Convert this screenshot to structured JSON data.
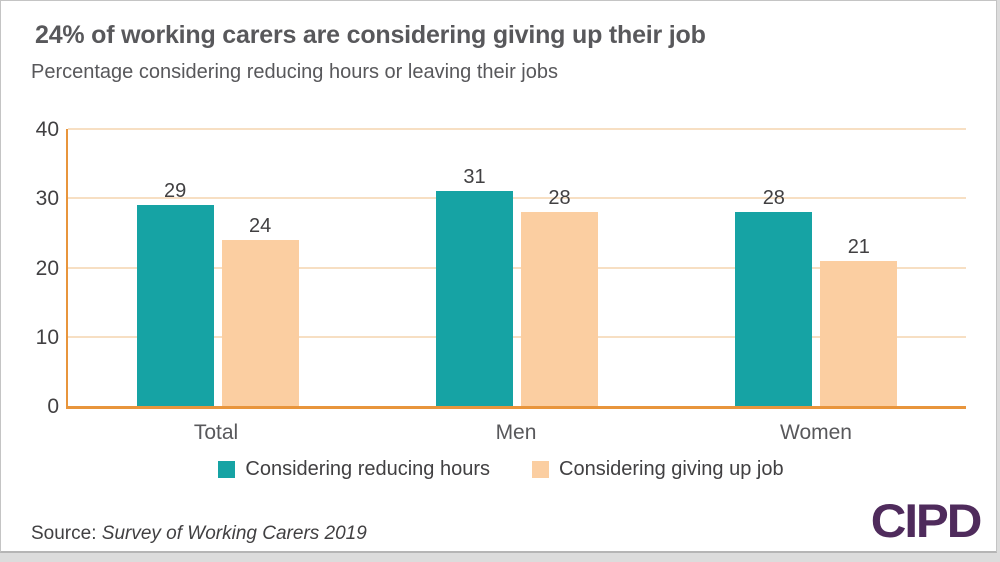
{
  "page": {
    "title": "24% of working carers are considering giving up their job",
    "subtitle": "Percentage considering reducing hours or leaving their jobs",
    "source_prefix": "Source:",
    "source_text": "Survey of Working Carers 2019",
    "logo_text": "CIPD"
  },
  "colors": {
    "teal": "#16a3a4",
    "peach": "#fbcea1",
    "axis_orange": "#e8953c",
    "gridline_orange": "#f7dfc3",
    "text_dark": "#58585b",
    "tick_text": "#414042",
    "logo_purple": "#4f2b5c"
  },
  "chart_data": {
    "type": "bar",
    "categories": [
      "Total",
      "Men",
      "Women"
    ],
    "series": [
      {
        "name": "Considering reducing hours",
        "color_key": "teal",
        "values": [
          29,
          31,
          28
        ]
      },
      {
        "name": "Considering giving up job",
        "color_key": "peach",
        "values": [
          24,
          28,
          21
        ]
      }
    ],
    "title": "24% of working carers are considering giving up their job",
    "subtitle": "Percentage considering reducing hours or leaving their jobs",
    "ylim": [
      0,
      40
    ],
    "yticks": [
      0,
      10,
      20,
      30,
      40
    ],
    "grid": "horizontal",
    "legend_position": "bottom",
    "value_labels": true
  }
}
